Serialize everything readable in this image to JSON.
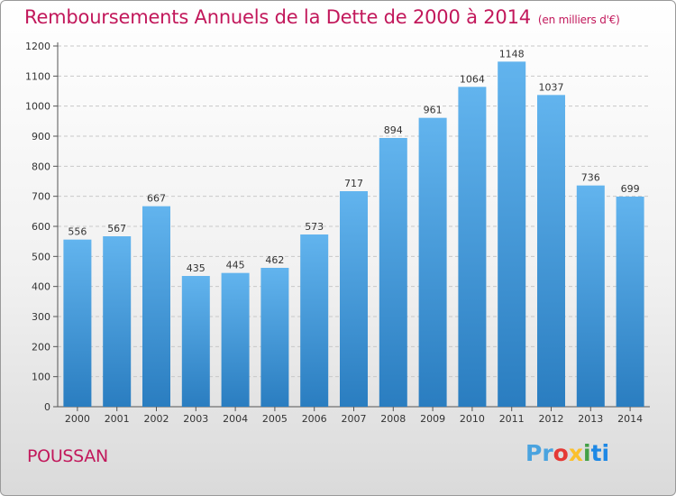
{
  "title": "Remboursements Annuels de la Dette de 2000 à 2014",
  "unit_label": "(en milliers d'€)",
  "location": "POUSSAN",
  "brand": "Proxiti",
  "colors": {
    "bar_light": "#62b4ee",
    "bar_dark": "#2a7dc0",
    "title": "#c2185b"
  },
  "chart_data": {
    "type": "bar",
    "title": "Remboursements Annuels de la Dette de 2000 à 2014",
    "categories": [
      "2000",
      "2001",
      "2002",
      "2003",
      "2004",
      "2005",
      "2006",
      "2007",
      "2008",
      "2009",
      "2010",
      "2011",
      "2012",
      "2013",
      "2014"
    ],
    "values": [
      556,
      567,
      667,
      435,
      445,
      462,
      573,
      717,
      894,
      961,
      1064,
      1148,
      1037,
      736,
      699
    ],
    "ylim": [
      0,
      1200
    ],
    "yticks": [
      0,
      100,
      200,
      300,
      400,
      500,
      600,
      700,
      800,
      900,
      1000,
      1100,
      1200
    ],
    "grid": true,
    "xlabel": "",
    "ylabel": ""
  }
}
